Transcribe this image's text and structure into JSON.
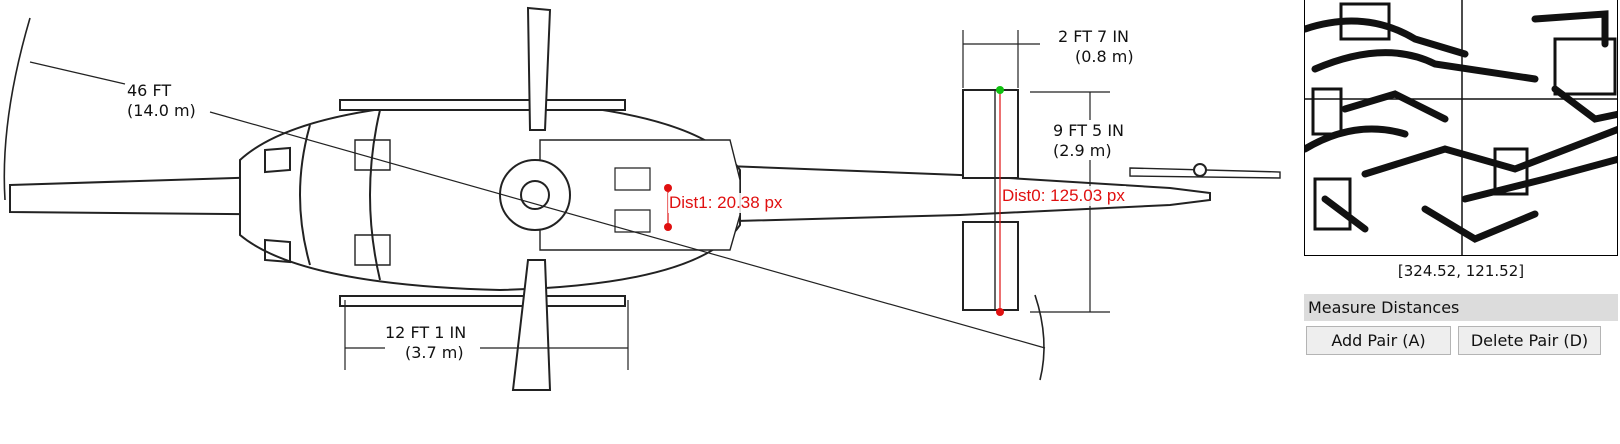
{
  "drawing": {
    "span_label_1": "46 FT",
    "span_label_2": "(14.0 m)",
    "skid_label_1": "12 FT  1 IN",
    "skid_label_2": "(3.7 m)",
    "stab_width_label_1": "2 FT  7 IN",
    "stab_width_label_2": "(0.8 m)",
    "stab_span_label_1": "9 FT  5 IN",
    "stab_span_label_2": "(2.9 m)"
  },
  "measurements": [
    {
      "label": "Dist0: 125.03 px",
      "color": "#e01010",
      "point_colors": [
        "#10c010",
        "#e01010"
      ]
    },
    {
      "label": "Dist1: 20.38 px",
      "color": "#e01010",
      "point_colors": [
        "#e01010",
        "#e01010"
      ]
    }
  ],
  "sidebar": {
    "cursor_coords": "[324.52, 121.52]",
    "section_title": "Measure Distances",
    "add_button": "Add Pair (A)",
    "delete_button": "Delete Pair (D)"
  }
}
